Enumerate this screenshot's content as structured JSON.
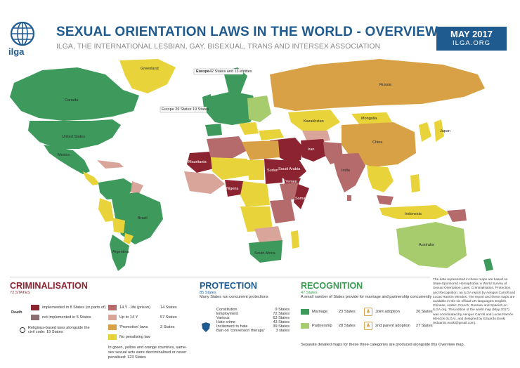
{
  "header": {
    "title": "SEXUAL ORIENTATION LAWS IN THE WORLD - OVERVIEW",
    "subtitle": "ILGA, THE INTERNATIONAL LESBIAN, GAY, BISEXUAL, TRANS AND INTERSEX ASSOCIATION",
    "logo_text": "ilga",
    "date": "MAY 2017",
    "website": "ILGA.ORG"
  },
  "colors": {
    "marriage": "#3d9a5c",
    "partnership": "#a7cc6e",
    "protection": "#e8d33a",
    "no_penalising": "#e8d33a",
    "promotion_laws": "#d9a146",
    "up_to_14": "#d9a49a",
    "life_prison": "#b56b6b",
    "death": "#8b2430",
    "ocean": "#ffffff",
    "title_blue": "#1f5b8f"
  },
  "map_labels": {
    "greenland": "Greenland",
    "canada": "Canada",
    "usa": "United States",
    "mexico": "Mexico",
    "brazil": "Brazil",
    "argentina": "Argentina",
    "russia": "Russia",
    "china": "China",
    "india": "India",
    "australia": "Australia",
    "mauritania": "Mauritania",
    "sudan": "Sudan",
    "saudi": "Saudi Arabia",
    "somalia": "Somalia",
    "iran": "Iran",
    "yemen": "Yemen",
    "nigeria": "Nigeria",
    "kazakhstan": "Kazakhstan",
    "mongolia": "Mongolia",
    "japan": "Japan",
    "indonesia": "Indonesia",
    "south_africa": "South Africa",
    "europe_callout": "Europe",
    "europe_count": "42 States and 13 entities",
    "europe_small": "Europe 26 States 19 States"
  },
  "criminalisation": {
    "heading": "CRIMINALISATION",
    "count": "72 STATES",
    "death_label": "Death",
    "implemented": "implemented in 8 States (or parts of)",
    "not_implemented": "not implemented in 5 States",
    "religious": "Religious-based laws alongside the civil code: 19 States",
    "life_label": "14 Y - life (prison)",
    "life_count": "14 States",
    "upto_label": "Up to 14 Y",
    "upto_count": "57 States",
    "promo_label": "'Promotion' laws",
    "promo_count": "3 States",
    "nopen_label": "No penalising law",
    "footer": "In green, yellow and orange countries, same-sex sexual acts were decriminalised or never penalised: 123 States"
  },
  "protection": {
    "heading": "PROTECTION",
    "count": "85 States",
    "sub": "Many States run concurrent protections",
    "items": [
      {
        "label": "Constitution",
        "count": "9 States"
      },
      {
        "label": "Employment",
        "count": "72 States"
      },
      {
        "label": "Various",
        "count": "63 States"
      },
      {
        "label": "Hate crime",
        "count": "43 States"
      },
      {
        "label": "Incitement to hate",
        "count": "39 States"
      },
      {
        "label": "Ban on 'conversion therapy'",
        "count": "3 states"
      }
    ]
  },
  "recognition": {
    "heading": "RECOGNITION",
    "count": "47 States",
    "sub": "A small number of States provide for marriage and partnership concurrently",
    "marriage": "Marriage",
    "marriage_count": "23 States",
    "partnership": "Partnership",
    "partnership_count": "28 States",
    "joint": "Joint adoption",
    "joint_count": "26 States",
    "second": "2nd parent adoption",
    "second_count": "27 States",
    "footer": "Separate detailed maps for these three categories are produced alongside this Overview map."
  },
  "note": "The data represented in these maps are based on State-Sponsored Homophobia: A World Survey of Sexual Orientation Laws: Criminalisation, Protection and Recognition, an ILGA report by Aengus Carroll and Lucas Ramón Mendos. The report and these maps are available in the six official UN languages: English, Chinese, Arabic, French, Russian and Spanish on ILGA.org. This edition of the world map (May 2017) was coordinated by Aengus Carroll and Lucas Ramón Mendos (ILGA), and designed by Eduardo Enoki (eduardo.enoki@gmail.com)."
}
